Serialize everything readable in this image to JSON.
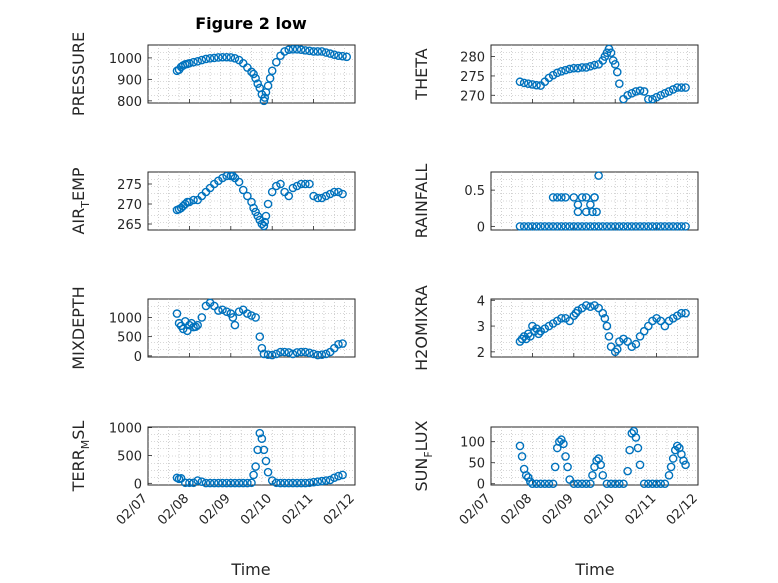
{
  "figure_title": "Figure 2 low",
  "x_axis_label": "Time",
  "chart_data": [
    {
      "type": "scatter",
      "name": "PRESSURE",
      "title": "Figure 2 low",
      "ylabel_main": "PRESSURE",
      "ylabel_sub": "",
      "ylabel_tail": "",
      "ylim": [
        790,
        1060
      ],
      "yticks": [
        800,
        900,
        1000
      ],
      "xlim": [
        0,
        5
      ],
      "xtick_labels": [
        "02/07",
        "02/08",
        "02/09",
        "02/10",
        "02/11",
        "02/12"
      ],
      "x": [
        0.7,
        0.75,
        0.8,
        0.85,
        0.9,
        0.95,
        1.0,
        1.1,
        1.2,
        1.3,
        1.4,
        1.5,
        1.6,
        1.7,
        1.8,
        1.9,
        2.0,
        2.1,
        2.2,
        2.3,
        2.4,
        2.5,
        2.55,
        2.6,
        2.65,
        2.7,
        2.75,
        2.8,
        2.82,
        2.85,
        2.9,
        2.95,
        3.0,
        3.1,
        3.2,
        3.3,
        3.4,
        3.5,
        3.6,
        3.7,
        3.8,
        3.9,
        4.0,
        4.1,
        4.2,
        4.3,
        4.4,
        4.5,
        4.6,
        4.7,
        4.8
      ],
      "y": [
        940,
        945,
        958,
        965,
        970,
        972,
        975,
        980,
        984,
        990,
        995,
        998,
        1000,
        1002,
        1003,
        1003,
        1002,
        998,
        990,
        975,
        955,
        935,
        925,
        905,
        880,
        860,
        830,
        800,
        815,
        840,
        870,
        905,
        940,
        980,
        1010,
        1030,
        1038,
        1040,
        1040,
        1038,
        1035,
        1033,
        1030,
        1030,
        1030,
        1025,
        1020,
        1015,
        1010,
        1008,
        1005
      ]
    },
    {
      "type": "scatter",
      "name": "THETA",
      "ylabel_main": "THETA",
      "ylabel_sub": "",
      "ylabel_tail": "",
      "ylim": [
        268,
        283
      ],
      "yticks": [
        270,
        275,
        280
      ],
      "xlim": [
        0,
        5
      ],
      "xtick_labels": [
        "02/07",
        "02/08",
        "02/09",
        "02/10",
        "02/11",
        "02/12"
      ],
      "x": [
        0.7,
        0.8,
        0.9,
        1.0,
        1.1,
        1.2,
        1.3,
        1.4,
        1.5,
        1.6,
        1.7,
        1.8,
        1.9,
        2.0,
        2.1,
        2.2,
        2.3,
        2.4,
        2.5,
        2.6,
        2.7,
        2.75,
        2.8,
        2.85,
        2.9,
        2.95,
        3.0,
        3.05,
        3.1,
        3.2,
        3.3,
        3.4,
        3.5,
        3.6,
        3.7,
        3.8,
        3.9,
        4.0,
        4.1,
        4.2,
        4.3,
        4.4,
        4.5,
        4.6,
        4.7
      ],
      "y": [
        273.5,
        273.2,
        273,
        272.8,
        272.6,
        272.5,
        273.5,
        274.5,
        275.2,
        275.8,
        276.2,
        276.5,
        276.8,
        277,
        277,
        277.2,
        277.2,
        277.5,
        277.8,
        278,
        279,
        280,
        281,
        282,
        281,
        279,
        278,
        276,
        273,
        269,
        270,
        270.5,
        271,
        271.2,
        271,
        269,
        269,
        269.5,
        270,
        270.5,
        271,
        271.5,
        272,
        272,
        272
      ]
    },
    {
      "type": "scatter",
      "name": "AIR_TEMP",
      "ylabel_main": "AIR",
      "ylabel_sub": "T",
      "ylabel_tail": "EMP",
      "ylim": [
        263.5,
        278
      ],
      "yticks": [
        265,
        270,
        275
      ],
      "xlim": [
        0,
        5
      ],
      "xtick_labels": [
        "02/07",
        "02/08",
        "02/09",
        "02/10",
        "02/11",
        "02/12"
      ],
      "x": [
        0.7,
        0.75,
        0.8,
        0.85,
        0.9,
        0.95,
        1.0,
        1.1,
        1.2,
        1.3,
        1.4,
        1.5,
        1.6,
        1.7,
        1.8,
        1.9,
        2.0,
        2.05,
        2.1,
        2.2,
        2.3,
        2.4,
        2.5,
        2.55,
        2.6,
        2.65,
        2.7,
        2.75,
        2.8,
        2.82,
        2.85,
        2.9,
        3.0,
        3.1,
        3.2,
        3.3,
        3.4,
        3.5,
        3.6,
        3.7,
        3.8,
        3.9,
        4.0,
        4.1,
        4.2,
        4.3,
        4.4,
        4.5,
        4.6,
        4.7
      ],
      "y": [
        268.5,
        268.7,
        269,
        269.5,
        270,
        270.5,
        270.5,
        271,
        271,
        272,
        273,
        274,
        275,
        275.8,
        276.5,
        277,
        277,
        277,
        276.5,
        275.5,
        273.5,
        272,
        270.5,
        269,
        268,
        267,
        266,
        265,
        264.5,
        265.5,
        267,
        270,
        273,
        274.5,
        275,
        273,
        272,
        274,
        274.5,
        275,
        275,
        275,
        272,
        271.5,
        271.5,
        272,
        272.5,
        273,
        273,
        272.5
      ]
    },
    {
      "type": "scatter",
      "name": "RAINFALL",
      "ylabel_main": "RAINFALL",
      "ylabel_sub": "",
      "ylabel_tail": "",
      "ylim": [
        -0.05,
        0.75
      ],
      "yticks": [
        0,
        0.5
      ],
      "xlim": [
        0,
        5
      ],
      "xtick_labels": [
        "02/07",
        "02/08",
        "02/09",
        "02/10",
        "02/11",
        "02/12"
      ],
      "x": [
        0.7,
        0.8,
        0.9,
        1.0,
        1.1,
        1.2,
        1.3,
        1.4,
        1.5,
        1.6,
        1.7,
        1.8,
        1.9,
        2.0,
        2.1,
        2.2,
        2.3,
        2.4,
        2.5,
        2.6,
        2.7,
        2.8,
        2.9,
        3.0,
        3.1,
        3.2,
        3.3,
        3.4,
        3.5,
        3.6,
        3.7,
        3.8,
        3.9,
        4.0,
        4.1,
        4.2,
        4.3,
        4.4,
        4.5,
        4.6,
        4.7,
        1.5,
        1.6,
        1.7,
        1.8,
        2.0,
        2.1,
        2.2,
        2.3,
        2.4,
        2.5,
        2.45,
        2.55,
        2.6,
        2.1,
        2.3,
        2.5
      ],
      "y": [
        0,
        0,
        0,
        0,
        0,
        0,
        0,
        0,
        0,
        0,
        0,
        0,
        0,
        0,
        0,
        0,
        0,
        0,
        0,
        0,
        0,
        0,
        0,
        0,
        0,
        0,
        0,
        0,
        0,
        0,
        0,
        0,
        0,
        0,
        0,
        0,
        0,
        0,
        0,
        0,
        0,
        0.4,
        0.4,
        0.4,
        0.4,
        0.4,
        0.2,
        0.4,
        0.4,
        0.3,
        0.4,
        0.2,
        0.2,
        0.7,
        0.3,
        0.2,
        0.4
      ]
    },
    {
      "type": "scatter",
      "name": "MIXDEPTH",
      "ylabel_main": "MIXDEPTH",
      "ylabel_sub": "",
      "ylabel_tail": "",
      "ylim": [
        -30,
        1480
      ],
      "yticks": [
        0,
        500,
        1000
      ],
      "xlim": [
        0,
        5
      ],
      "xtick_labels": [
        "02/07",
        "02/08",
        "02/09",
        "02/10",
        "02/11",
        "02/12"
      ],
      "x": [
        0.7,
        0.75,
        0.8,
        0.85,
        0.9,
        0.95,
        1.0,
        1.05,
        1.1,
        1.15,
        1.2,
        1.3,
        1.4,
        1.5,
        1.6,
        1.7,
        1.8,
        1.9,
        2.0,
        2.05,
        2.1,
        2.2,
        2.3,
        2.4,
        2.5,
        2.6,
        2.7,
        2.75,
        2.8,
        2.9,
        3.0,
        3.1,
        3.2,
        3.3,
        3.4,
        3.5,
        3.6,
        3.7,
        3.8,
        3.9,
        4.0,
        4.1,
        4.2,
        4.3,
        4.4,
        4.5,
        4.6,
        4.7
      ],
      "y": [
        1100,
        850,
        780,
        700,
        900,
        650,
        800,
        850,
        750,
        760,
        800,
        1000,
        1300,
        1380,
        1300,
        1180,
        1200,
        1150,
        1100,
        1000,
        800,
        1150,
        1200,
        1100,
        1050,
        1000,
        500,
        200,
        50,
        30,
        20,
        50,
        100,
        100,
        90,
        50,
        90,
        100,
        100,
        80,
        50,
        20,
        30,
        50,
        100,
        200,
        300,
        320
      ]
    },
    {
      "type": "scatter",
      "name": "H2OMIXRA",
      "ylabel_main": "H2OMIXRA",
      "ylabel_sub": "",
      "ylabel_tail": "",
      "ylim": [
        1.8,
        4.05
      ],
      "yticks": [
        2,
        3,
        4
      ],
      "xlim": [
        0,
        5
      ],
      "xtick_labels": [
        "02/07",
        "02/08",
        "02/09",
        "02/10",
        "02/11",
        "02/12"
      ],
      "x": [
        0.7,
        0.75,
        0.8,
        0.85,
        0.9,
        0.95,
        1.0,
        1.05,
        1.1,
        1.15,
        1.2,
        1.3,
        1.4,
        1.5,
        1.6,
        1.7,
        1.8,
        1.9,
        2.0,
        2.05,
        2.1,
        2.2,
        2.3,
        2.4,
        2.5,
        2.6,
        2.7,
        2.75,
        2.8,
        2.85,
        2.9,
        3.0,
        3.05,
        3.1,
        3.2,
        3.3,
        3.4,
        3.5,
        3.6,
        3.7,
        3.8,
        3.9,
        4.0,
        4.1,
        4.2,
        4.3,
        4.4,
        4.5,
        4.6,
        4.7
      ],
      "y": [
        2.4,
        2.5,
        2.6,
        2.5,
        2.7,
        2.6,
        3.0,
        2.8,
        2.9,
        2.7,
        2.8,
        2.9,
        3.0,
        3.1,
        3.2,
        3.3,
        3.3,
        3.2,
        3.4,
        3.5,
        3.6,
        3.7,
        3.8,
        3.75,
        3.8,
        3.7,
        3.5,
        3.3,
        3.0,
        2.6,
        2.2,
        2.0,
        2.1,
        2.4,
        2.5,
        2.4,
        2.2,
        2.3,
        2.6,
        2.8,
        3.0,
        3.2,
        3.3,
        3.2,
        3.0,
        3.2,
        3.3,
        3.4,
        3.5,
        3.5
      ]
    },
    {
      "type": "scatter",
      "name": "TERR_MSL",
      "ylabel_main": "TERR",
      "ylabel_sub": "M",
      "ylabel_tail": "SL",
      "ylim": [
        -30,
        1010
      ],
      "yticks": [
        0,
        500,
        1000
      ],
      "xlim": [
        0,
        5
      ],
      "xtick_labels": [
        "02/07",
        "02/08",
        "02/09",
        "02/10",
        "02/11",
        "02/12"
      ],
      "x": [
        0.7,
        0.75,
        0.8,
        0.9,
        1.0,
        1.1,
        1.2,
        1.3,
        1.4,
        1.5,
        1.6,
        1.7,
        1.8,
        1.9,
        2.0,
        2.1,
        2.2,
        2.3,
        2.4,
        2.5,
        2.55,
        2.6,
        2.65,
        2.7,
        2.75,
        2.8,
        2.85,
        2.9,
        3.0,
        3.1,
        3.2,
        3.3,
        3.4,
        3.5,
        3.6,
        3.7,
        3.8,
        3.9,
        4.0,
        4.1,
        4.2,
        4.3,
        4.4,
        4.5,
        4.6,
        4.7
      ],
      "y": [
        100,
        80,
        90,
        10,
        10,
        10,
        50,
        30,
        5,
        5,
        5,
        5,
        5,
        5,
        5,
        5,
        5,
        5,
        5,
        10,
        150,
        300,
        600,
        900,
        800,
        600,
        400,
        200,
        50,
        10,
        5,
        5,
        5,
        5,
        5,
        5,
        5,
        10,
        20,
        30,
        40,
        50,
        60,
        100,
        130,
        150
      ]
    },
    {
      "type": "scatter",
      "name": "SUN_FLUX",
      "ylabel_main": "SUN",
      "ylabel_sub": "F",
      "ylabel_tail": "LUX",
      "ylim": [
        -3,
        135
      ],
      "yticks": [
        0,
        50,
        100
      ],
      "xlim": [
        0,
        5
      ],
      "xtick_labels": [
        "02/07",
        "02/08",
        "02/09",
        "02/10",
        "02/11",
        "02/12"
      ],
      "x": [
        0.7,
        0.75,
        0.8,
        0.85,
        0.9,
        0.95,
        1.0,
        1.1,
        1.2,
        1.3,
        1.4,
        1.5,
        1.55,
        1.6,
        1.65,
        1.7,
        1.75,
        1.8,
        1.85,
        1.9,
        2.0,
        2.1,
        2.2,
        2.3,
        2.4,
        2.45,
        2.5,
        2.55,
        2.6,
        2.65,
        2.7,
        2.8,
        2.9,
        3.0,
        3.1,
        3.2,
        3.3,
        3.35,
        3.4,
        3.45,
        3.5,
        3.55,
        3.6,
        3.7,
        3.8,
        3.9,
        4.0,
        4.1,
        4.2,
        4.3,
        4.35,
        4.4,
        4.45,
        4.5,
        4.55,
        4.6,
        4.65,
        4.7
      ],
      "y": [
        90,
        65,
        35,
        20,
        15,
        5,
        0,
        0,
        0,
        0,
        0,
        0,
        40,
        85,
        100,
        105,
        95,
        65,
        40,
        10,
        0,
        0,
        0,
        0,
        0,
        20,
        40,
        55,
        60,
        45,
        20,
        0,
        0,
        0,
        0,
        0,
        30,
        80,
        120,
        125,
        110,
        85,
        45,
        0,
        0,
        0,
        0,
        0,
        0,
        20,
        40,
        60,
        80,
        90,
        85,
        70,
        55,
        45
      ]
    }
  ]
}
